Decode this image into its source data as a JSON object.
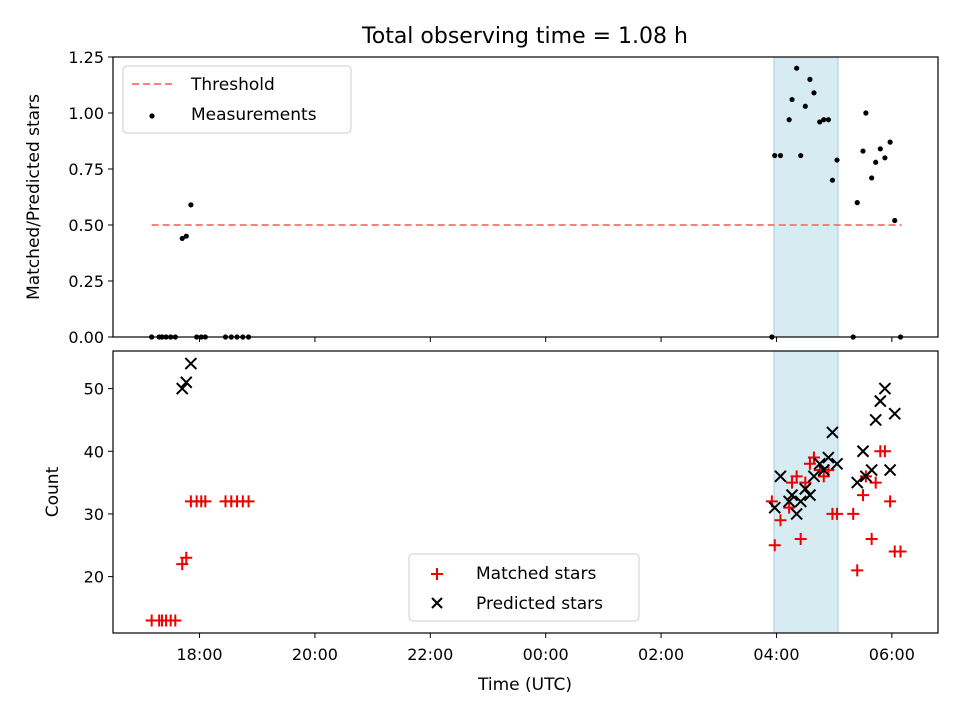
{
  "title": "Total observing time = 1.08 h",
  "xlabel": "Time (UTC)",
  "xticks": [
    "18:00",
    "20:00",
    "22:00",
    "00:00",
    "02:00",
    "04:00",
    "06:00"
  ],
  "colors": {
    "threshold": "#ff7f7f",
    "measurements": "#000000",
    "matched": "#ee0000",
    "predicted": "#000000",
    "span": "#add8e6"
  },
  "chart_data": [
    {
      "type": "scatter",
      "ylabel": "Matched/Predicted stars",
      "x_axis": "time UTC, hours since 00:00 of the first day",
      "ylim": [
        0,
        1.25
      ],
      "yticks": [
        "0.00",
        "0.25",
        "0.50",
        "0.75",
        "1.00",
        "1.25"
      ],
      "legend_position": "upper left",
      "observing_window": {
        "start": "03:58",
        "end": "05:03"
      },
      "threshold": {
        "name": "Threshold",
        "value": 0.5,
        "x": [
          17.17,
          30.17
        ],
        "style": "dashed"
      },
      "series": [
        {
          "name": "Measurements",
          "points": [
            [
              17.17,
              0.0
            ],
            [
              17.3,
              0.0
            ],
            [
              17.35,
              0.0
            ],
            [
              17.42,
              0.0
            ],
            [
              17.5,
              0.0
            ],
            [
              17.58,
              0.0
            ],
            [
              17.7,
              0.44
            ],
            [
              17.77,
              0.45
            ],
            [
              17.85,
              0.59
            ],
            [
              17.95,
              0.0
            ],
            [
              18.03,
              0.0
            ],
            [
              18.1,
              0.0
            ],
            [
              18.45,
              0.0
            ],
            [
              18.55,
              0.0
            ],
            [
              18.65,
              0.0
            ],
            [
              18.75,
              0.0
            ],
            [
              18.85,
              0.0
            ],
            [
              27.92,
              0.0
            ],
            [
              27.97,
              0.81
            ],
            [
              28.07,
              0.81
            ],
            [
              28.22,
              0.97
            ],
            [
              28.27,
              1.06
            ],
            [
              28.35,
              1.2
            ],
            [
              28.42,
              0.81
            ],
            [
              28.5,
              1.03
            ],
            [
              28.58,
              1.15
            ],
            [
              28.65,
              1.09
            ],
            [
              28.75,
              0.96
            ],
            [
              28.82,
              0.97
            ],
            [
              28.9,
              0.97
            ],
            [
              28.97,
              0.7
            ],
            [
              29.05,
              0.79
            ],
            [
              29.33,
              0.0
            ],
            [
              29.4,
              0.6
            ],
            [
              29.5,
              0.83
            ],
            [
              29.55,
              1.0
            ],
            [
              29.65,
              0.71
            ],
            [
              29.72,
              0.78
            ],
            [
              29.8,
              0.84
            ],
            [
              29.88,
              0.8
            ],
            [
              29.97,
              0.87
            ],
            [
              30.05,
              0.52
            ],
            [
              30.15,
              0.0
            ]
          ]
        }
      ]
    },
    {
      "type": "scatter",
      "ylabel": "Count",
      "x_axis": "time UTC, hours since 00:00 of the first day",
      "ylim": [
        11,
        56
      ],
      "yticks": [
        "20",
        "30",
        "40",
        "50"
      ],
      "legend_position": "lower center",
      "observing_window": {
        "start": "03:58",
        "end": "05:03"
      },
      "series": [
        {
          "name": "Matched stars",
          "marker": "plus",
          "points": [
            [
              17.17,
              13
            ],
            [
              17.3,
              13
            ],
            [
              17.35,
              13
            ],
            [
              17.42,
              13
            ],
            [
              17.5,
              13
            ],
            [
              17.58,
              13
            ],
            [
              17.7,
              22
            ],
            [
              17.77,
              23
            ],
            [
              17.85,
              32
            ],
            [
              17.95,
              32
            ],
            [
              18.03,
              32
            ],
            [
              18.1,
              32
            ],
            [
              18.45,
              32
            ],
            [
              18.55,
              32
            ],
            [
              18.65,
              32
            ],
            [
              18.75,
              32
            ],
            [
              18.85,
              32
            ],
            [
              27.92,
              32
            ],
            [
              27.97,
              25
            ],
            [
              28.07,
              29
            ],
            [
              28.22,
              31
            ],
            [
              28.27,
              35
            ],
            [
              28.35,
              36
            ],
            [
              28.42,
              26
            ],
            [
              28.5,
              35
            ],
            [
              28.58,
              38
            ],
            [
              28.65,
              39
            ],
            [
              28.75,
              37
            ],
            [
              28.82,
              36
            ],
            [
              28.9,
              37
            ],
            [
              28.97,
              30
            ],
            [
              29.05,
              30
            ],
            [
              29.33,
              30
            ],
            [
              29.4,
              21
            ],
            [
              29.5,
              33
            ],
            [
              29.55,
              36
            ],
            [
              29.65,
              26
            ],
            [
              29.72,
              35
            ],
            [
              29.8,
              40
            ],
            [
              29.88,
              40
            ],
            [
              29.97,
              32
            ],
            [
              30.05,
              24
            ],
            [
              30.15,
              24
            ]
          ]
        },
        {
          "name": "Predicted stars",
          "marker": "x",
          "points": [
            [
              17.7,
              50
            ],
            [
              17.77,
              51
            ],
            [
              17.85,
              54
            ],
            [
              27.97,
              31
            ],
            [
              28.07,
              36
            ],
            [
              28.22,
              32
            ],
            [
              28.27,
              33
            ],
            [
              28.35,
              30
            ],
            [
              28.42,
              32
            ],
            [
              28.5,
              34
            ],
            [
              28.58,
              33
            ],
            [
              28.65,
              36
            ],
            [
              28.75,
              38
            ],
            [
              28.82,
              37
            ],
            [
              28.9,
              39
            ],
            [
              28.97,
              43
            ],
            [
              29.05,
              38
            ],
            [
              29.4,
              35
            ],
            [
              29.5,
              40
            ],
            [
              29.55,
              36
            ],
            [
              29.65,
              37
            ],
            [
              29.72,
              45
            ],
            [
              29.8,
              48
            ],
            [
              29.88,
              50
            ],
            [
              29.97,
              37
            ],
            [
              30.05,
              46
            ]
          ]
        }
      ]
    }
  ]
}
